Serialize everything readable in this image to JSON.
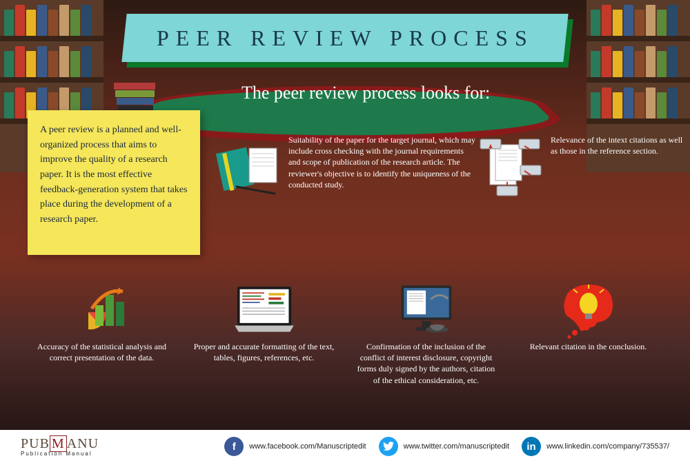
{
  "title": "PEER REVIEW PROCESS",
  "intro": "A peer review is a planned and well-organized process that aims to improve the quality of a research paper. It is the most effective feedback-generation system that takes place during the development of a research paper.",
  "subtitle": "The peer review process looks for:",
  "items": [
    {
      "text": "Suitability of the paper for the target journal, which may include cross checking with the journal requirements and scope of publication of the research article. The reviewer's objective is to identify the uniqueness of the conducted study."
    },
    {
      "text": "Relevance of the intext citations as well as those in the reference section."
    },
    {
      "text": "Accuracy of the statistical analysis and correct presentation of the data."
    },
    {
      "text": "Proper and accurate formatting of the text, tables, figures, references, etc."
    },
    {
      "text": "Confirmation of the inclusion of the conflict of interest disclosure, copyright forms duly signed by the authors, citation of the ethical consideration, etc."
    },
    {
      "text": "Relevant citation in the conclusion."
    }
  ],
  "bookshelf_colors": [
    "#2a7a5a",
    "#c43a2a",
    "#e6b422",
    "#3a5a8a",
    "#8a4a2a",
    "#c49a6a",
    "#5a8a3a",
    "#2a4a6a"
  ],
  "pile_colors": [
    "#b33a3a",
    "#7a9a3a",
    "#3a5a8a",
    "#2a2a2a",
    "#c49a4a"
  ],
  "footer": {
    "brand": "PUB",
    "brand_accent": "M",
    "brand_rest": "ANU",
    "brand_sub": "Publication  Manual",
    "facebook": "www.facebook.com/Manuscriptedit",
    "twitter": "www.twitter.com/manuscriptedit",
    "linkedin": "www.linkedin.com/company/735537/",
    "colors": {
      "fb": "#3b5998",
      "tw": "#1da1f2",
      "in": "#0077b5"
    }
  },
  "colors": {
    "banner_bg": "#7ed6d6",
    "banner_shadow": "#0a7a2a",
    "intro_bg": "#f5e65a",
    "title_text": "#183848"
  }
}
